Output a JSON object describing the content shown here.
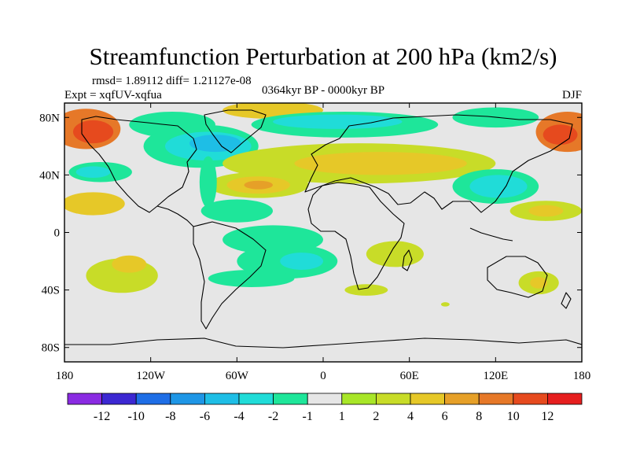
{
  "chart_data": {
    "type": "heatmap",
    "title": "Streamfunction Perturbation at 200 hPa (km2/s)",
    "stats_line": "rmsd= 1.89112 diff= 1.21127e-08",
    "experiment_label": "Expt = xqfUV-xqfua",
    "period_label": "0364kyr BP - 0000kyr BP",
    "season_label": "DJF",
    "x_range": [
      -180,
      180
    ],
    "y_range": [
      -90,
      90
    ],
    "x_ticks": [
      {
        "value": -180,
        "label": "180"
      },
      {
        "value": -120,
        "label": "120W"
      },
      {
        "value": -60,
        "label": "60W"
      },
      {
        "value": 0,
        "label": "0"
      },
      {
        "value": 60,
        "label": "60E"
      },
      {
        "value": 120,
        "label": "120E"
      },
      {
        "value": 180,
        "label": "180"
      }
    ],
    "y_ticks": [
      {
        "value": 80,
        "label": "80N"
      },
      {
        "value": 40,
        "label": "40N"
      },
      {
        "value": 0,
        "label": "0"
      },
      {
        "value": -40,
        "label": "40S"
      },
      {
        "value": -80,
        "label": "80S"
      }
    ],
    "colorbar": {
      "colors": [
        "#8a2be2",
        "#3c28d2",
        "#1e6ee6",
        "#1e96e6",
        "#1ebee6",
        "#20dcd8",
        "#1ee69a",
        "#e6e6e6",
        "#a8e628",
        "#c8dc28",
        "#e6c828",
        "#e6a028",
        "#e67828",
        "#e64a1e",
        "#e61e1e"
      ],
      "labels": [
        "-12",
        "-10",
        "-8",
        "-6",
        "-4",
        "-2",
        "-1",
        "1",
        "2",
        "4",
        "6",
        "8",
        "10",
        "12"
      ]
    },
    "anomaly_regions": [
      {
        "lon": -165,
        "lat": 72,
        "rlon": 24,
        "rlat": 14,
        "value": 8
      },
      {
        "lon": -160,
        "lat": 70,
        "rlon": 14,
        "rlat": 8,
        "value": 10
      },
      {
        "lon": 170,
        "lat": 70,
        "rlon": 22,
        "rlat": 14,
        "value": 8
      },
      {
        "lon": 165,
        "lat": 68,
        "rlon": 12,
        "rlat": 7,
        "value": 10
      },
      {
        "lon": -155,
        "lat": 42,
        "rlon": 22,
        "rlat": 7,
        "value": -2
      },
      {
        "lon": -160,
        "lat": 42,
        "rlon": 12,
        "rlat": 4,
        "value": -4
      },
      {
        "lon": -160,
        "lat": 20,
        "rlon": 22,
        "rlat": 8,
        "value": 4
      },
      {
        "lon": -105,
        "lat": 75,
        "rlon": 30,
        "rlat": 9,
        "value": -2
      },
      {
        "lon": -85,
        "lat": 60,
        "rlon": 40,
        "rlat": 15,
        "value": -2
      },
      {
        "lon": -80,
        "lat": 60,
        "rlon": 30,
        "rlat": 10,
        "value": -4
      },
      {
        "lon": -75,
        "lat": 62,
        "rlon": 18,
        "rlat": 6,
        "value": -6
      },
      {
        "lon": -35,
        "lat": 85,
        "rlon": 35,
        "rlat": 6,
        "value": 4
      },
      {
        "lon": 15,
        "lat": 75,
        "rlon": 65,
        "rlat": 9,
        "value": -2
      },
      {
        "lon": 10,
        "lat": 77,
        "rlon": 45,
        "rlat": 5,
        "value": -4
      },
      {
        "lon": 120,
        "lat": 80,
        "rlon": 30,
        "rlat": 7,
        "value": -2
      },
      {
        "lon": 25,
        "lat": 48,
        "rlon": 95,
        "rlat": 14,
        "value": 2
      },
      {
        "lon": 40,
        "lat": 48,
        "rlon": 60,
        "rlat": 8,
        "value": 4
      },
      {
        "lon": -45,
        "lat": 33,
        "rlon": 35,
        "rlat": 9,
        "value": 2
      },
      {
        "lon": -45,
        "lat": 33,
        "rlon": 22,
        "rlat": 6,
        "value": 4
      },
      {
        "lon": -45,
        "lat": 33,
        "rlon": 10,
        "rlat": 3,
        "value": 6
      },
      {
        "lon": 120,
        "lat": 32,
        "rlon": 30,
        "rlat": 12,
        "value": -2
      },
      {
        "lon": 122,
        "lat": 32,
        "rlon": 20,
        "rlat": 8,
        "value": -4
      },
      {
        "lon": -80,
        "lat": 35,
        "rlon": 6,
        "rlat": 18,
        "value": -2
      },
      {
        "lon": -60,
        "lat": 15,
        "rlon": 25,
        "rlat": 8,
        "value": -2
      },
      {
        "lon": -35,
        "lat": -5,
        "rlon": 35,
        "rlat": 10,
        "value": -2
      },
      {
        "lon": -25,
        "lat": -20,
        "rlon": 35,
        "rlat": 12,
        "value": -2
      },
      {
        "lon": -15,
        "lat": -20,
        "rlon": 15,
        "rlat": 6,
        "value": -4
      },
      {
        "lon": -50,
        "lat": -32,
        "rlon": 30,
        "rlat": 6,
        "value": -2
      },
      {
        "lon": 155,
        "lat": 15,
        "rlon": 25,
        "rlat": 7,
        "value": 2
      },
      {
        "lon": 155,
        "lat": 15,
        "rlon": 12,
        "rlat": 4,
        "value": 4
      },
      {
        "lon": -140,
        "lat": -30,
        "rlon": 25,
        "rlat": 12,
        "value": 2
      },
      {
        "lon": -135,
        "lat": -22,
        "rlon": 12,
        "rlat": 6,
        "value": 4
      },
      {
        "lon": 50,
        "lat": -15,
        "rlon": 20,
        "rlat": 9,
        "value": 2
      },
      {
        "lon": 150,
        "lat": -35,
        "rlon": 14,
        "rlat": 8,
        "value": 2
      },
      {
        "lon": 150,
        "lat": -35,
        "rlon": 6,
        "rlat": 4,
        "value": 4
      },
      {
        "lon": 85,
        "lat": -50,
        "rlon": 3,
        "rlat": 1.5,
        "value": 2
      },
      {
        "lon": 30,
        "lat": -40,
        "rlon": 15,
        "rlat": 4,
        "value": 2
      }
    ]
  }
}
